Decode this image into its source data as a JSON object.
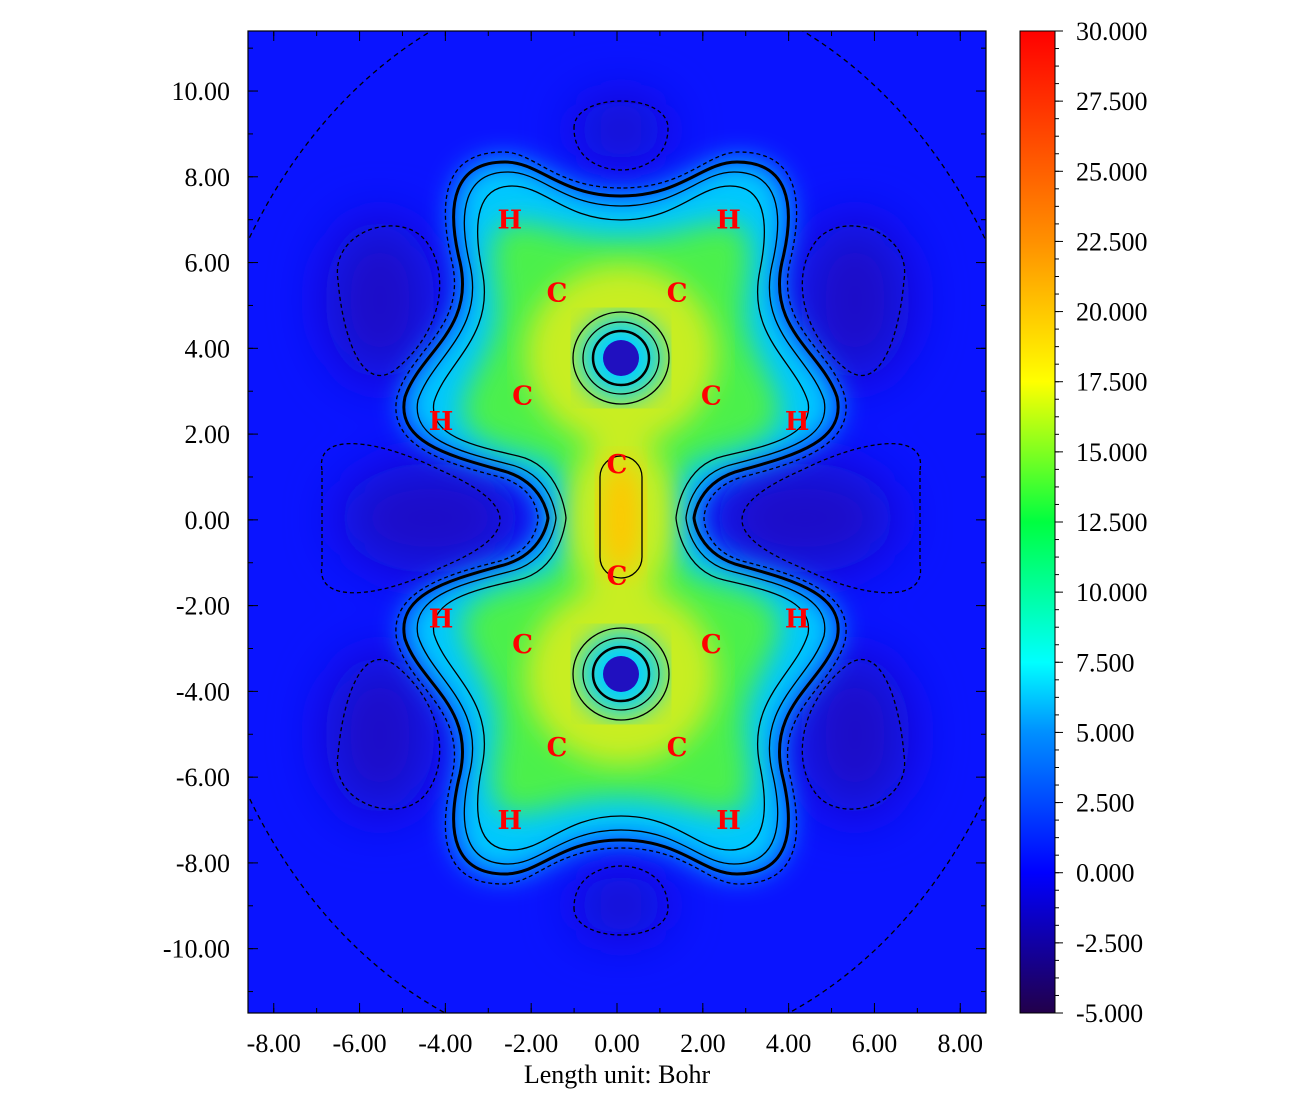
{
  "chart_data": {
    "type": "heatmap",
    "title": "",
    "xlabel": "Length unit: Bohr",
    "ylabel": "",
    "xlim": [
      -8.6,
      8.6
    ],
    "ylim": [
      -11.5,
      11.4
    ],
    "x_ticks": [
      "-8.00",
      "-6.00",
      "-4.00",
      "-2.00",
      "0.00",
      "2.00",
      "4.00",
      "6.00",
      "8.00"
    ],
    "y_ticks": [
      "10.00",
      "8.00",
      "6.00",
      "4.00",
      "2.00",
      "0.00",
      "-2.00",
      "-4.00",
      "-6.00",
      "-8.00",
      "-10.00"
    ],
    "colorbar": {
      "range": [
        -5.0,
        30.0
      ],
      "ticks": [
        "30.000",
        "27.500",
        "25.000",
        "22.500",
        "20.000",
        "17.500",
        "15.000",
        "12.500",
        "10.000",
        "7.500",
        "5.000",
        "2.500",
        "0.000",
        "-2.500",
        "-5.000"
      ],
      "colors": [
        "#22004a",
        "#0000ff",
        "#00ffff",
        "#00ff00",
        "#ffff00",
        "#ff0000"
      ]
    },
    "atoms": [
      {
        "label": "H",
        "x": -2.5,
        "y": 7.0
      },
      {
        "label": "H",
        "x": 2.6,
        "y": 7.0
      },
      {
        "label": "C",
        "x": -1.4,
        "y": 5.3
      },
      {
        "label": "C",
        "x": 1.4,
        "y": 5.3
      },
      {
        "label": "C",
        "x": -2.2,
        "y": 2.9
      },
      {
        "label": "C",
        "x": 2.2,
        "y": 2.9
      },
      {
        "label": "H",
        "x": -4.1,
        "y": 2.3
      },
      {
        "label": "H",
        "x": 4.2,
        "y": 2.3
      },
      {
        "label": "C",
        "x": 0.0,
        "y": 1.3
      },
      {
        "label": "C",
        "x": 0.0,
        "y": -1.3
      },
      {
        "label": "H",
        "x": -4.1,
        "y": -2.3
      },
      {
        "label": "H",
        "x": 4.2,
        "y": -2.3
      },
      {
        "label": "C",
        "x": -2.2,
        "y": -2.9
      },
      {
        "label": "C",
        "x": 2.2,
        "y": -2.9
      },
      {
        "label": "C",
        "x": -1.4,
        "y": -5.3
      },
      {
        "label": "C",
        "x": 1.4,
        "y": -5.3
      },
      {
        "label": "H",
        "x": -2.5,
        "y": -7.0
      },
      {
        "label": "H",
        "x": 2.6,
        "y": -7.0
      }
    ]
  }
}
